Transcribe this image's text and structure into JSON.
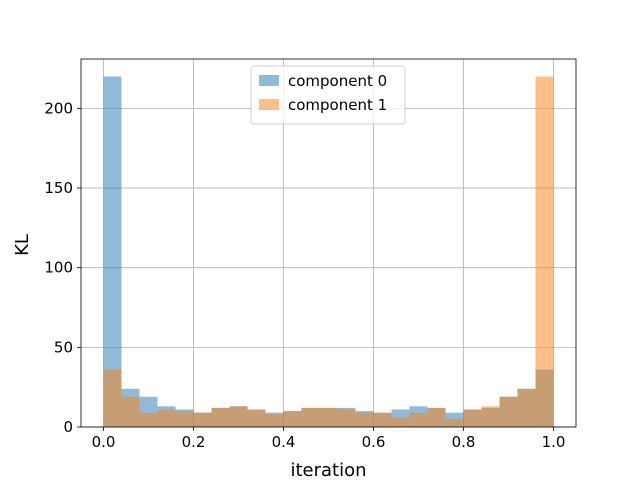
{
  "chart_data": {
    "type": "bar",
    "title": "",
    "xlabel": "iteration",
    "ylabel": "KL",
    "xlim": [
      -0.05,
      1.05
    ],
    "ylim": [
      0,
      231
    ],
    "x_ticks": [
      "0.0",
      "0.2",
      "0.4",
      "0.6",
      "0.8",
      "1.0"
    ],
    "x_tick_values": [
      0.0,
      0.2,
      0.4,
      0.6,
      0.8,
      1.0
    ],
    "y_ticks": [
      "0",
      "50",
      "100",
      "150",
      "200"
    ],
    "y_tick_values": [
      0,
      50,
      100,
      150,
      200
    ],
    "grid": true,
    "legend_position": "upper-center",
    "bin_edges": [
      0.0,
      0.04,
      0.08,
      0.12,
      0.16,
      0.2,
      0.24,
      0.28,
      0.32,
      0.36,
      0.4,
      0.44,
      0.48,
      0.52,
      0.56,
      0.6,
      0.64,
      0.68,
      0.72,
      0.76,
      0.8,
      0.84,
      0.88,
      0.92,
      0.96,
      1.0
    ],
    "series": [
      {
        "name": "component 0",
        "color": "#1f77b4",
        "opacity": 0.5,
        "values": [
          220,
          24,
          19,
          13,
          11,
          9,
          12,
          13,
          11,
          9,
          10,
          12,
          12,
          12,
          10,
          9,
          11,
          13,
          12,
          9,
          11,
          12,
          19,
          24,
          36
        ]
      },
      {
        "name": "component 1",
        "color": "#ff7f0e",
        "opacity": 0.5,
        "values": [
          36,
          19,
          9,
          11,
          10,
          9,
          12,
          13,
          11,
          8,
          10,
          12,
          12,
          11,
          9,
          9,
          6,
          9,
          12,
          5,
          11,
          13,
          19,
          24,
          220
        ]
      }
    ]
  }
}
